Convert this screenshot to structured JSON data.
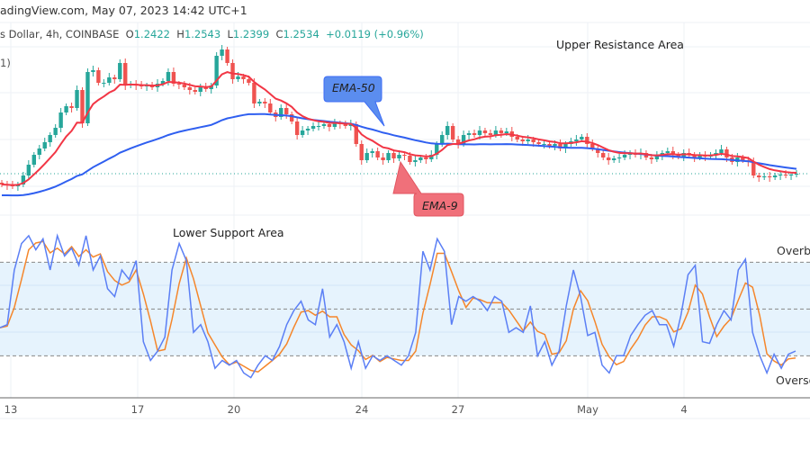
{
  "header": {
    "watermark": "adingView.com, May 07, 2023 14:42 UTC+1",
    "symbol": "s Dollar, 4h, COINBASE",
    "o_label": "O",
    "o": "1.2422",
    "h_label": "H",
    "h": "1.2543",
    "l_label": "L",
    "l": "1.2399",
    "c_label": "C",
    "c": "1.2534",
    "change": "+0.0119 (+0.96%)",
    "indicator_fragment": "1)"
  },
  "colors": {
    "up": "#26a69a",
    "down": "#ef5350",
    "ema9": "#f23645",
    "ema50": "#2f5ff0",
    "k_line": "#5b7ff5",
    "d_line": "#f5862b",
    "band": "#e6f3fd"
  },
  "annotations": {
    "upper": "Upper Resistance Area",
    "lower": "Lower Support Area",
    "ema50": "EMA-50",
    "ema9": "EMA-9",
    "overbought": "Overbo",
    "oversold": "Overso"
  },
  "chart_data": [
    {
      "type": "candlestick",
      "interval": "4h",
      "x_ticks": [
        "13",
        "17",
        "20",
        "24",
        "27",
        "May",
        "4"
      ],
      "close": [
        1.2522,
        1.2521,
        1.252,
        1.2522,
        1.2532,
        1.2544,
        1.2555,
        1.2562,
        1.2569,
        1.2577,
        1.2585,
        1.2602,
        1.2609,
        1.2607,
        1.2627,
        1.259,
        1.2647,
        1.2649,
        1.2635,
        1.2635,
        1.2641,
        1.2639,
        1.2657,
        1.2632,
        1.2634,
        1.2632,
        1.2631,
        1.2632,
        1.263,
        1.2634,
        1.2637,
        1.2647,
        1.2634,
        1.2633,
        1.263,
        1.2627,
        1.2625,
        1.263,
        1.2628,
        1.2632,
        1.2665,
        1.2672,
        1.2657,
        1.2639,
        1.2642,
        1.2639,
        1.2635,
        1.2612,
        1.2614,
        1.2612,
        1.2602,
        1.2597,
        1.2607,
        1.26,
        1.2592,
        1.2577,
        1.2582,
        1.2584,
        1.2587,
        1.2587,
        1.2589,
        1.2586,
        1.259,
        1.2589,
        1.2587,
        1.2589,
        1.2567,
        1.2549,
        1.2557,
        1.2559,
        1.2552,
        1.2549,
        1.2557,
        1.2551,
        1.2555,
        1.2554,
        1.2547,
        1.2549,
        1.2552,
        1.255,
        1.2555,
        1.2567,
        1.2577,
        1.2587,
        1.2572,
        1.2567,
        1.2577,
        1.2579,
        1.2577,
        1.2582,
        1.2579,
        1.2577,
        1.2582,
        1.2579,
        1.2581,
        1.2575,
        1.2572,
        1.257,
        1.2572,
        1.2569,
        1.2567,
        1.2567,
        1.2565,
        1.2567,
        1.2562,
        1.2567,
        1.257,
        1.2572,
        1.2575,
        1.2567,
        1.2562,
        1.2557,
        1.2552,
        1.2549,
        1.2551,
        1.2552,
        1.2555,
        1.2557,
        1.2555,
        1.2557,
        1.2552,
        1.255,
        1.2554,
        1.2557,
        1.2559,
        1.2555,
        1.2553,
        1.2557,
        1.2555,
        1.2552,
        1.2554,
        1.2553,
        1.2555,
        1.2557,
        1.2561,
        1.2552,
        1.2547,
        1.2552,
        1.2549,
        1.2547,
        1.2532,
        1.253,
        1.2531,
        1.253,
        1.2532,
        1.2533,
        1.2532,
        1.2533,
        1.2534
      ],
      "overlays": [
        "EMA-9",
        "EMA-50"
      ],
      "last_price": 1.2534
    },
    {
      "type": "line",
      "levels": [
        80,
        50,
        20
      ],
      "ylim": [
        0,
        100
      ],
      "k": [
        38,
        40,
        75,
        92,
        97,
        88,
        95,
        75,
        97,
        84,
        89,
        78,
        97,
        75,
        84,
        63,
        58,
        75,
        69,
        81,
        29,
        17,
        23,
        32,
        75,
        92,
        81,
        35,
        40,
        29,
        12,
        17,
        14,
        17,
        9,
        6,
        14,
        20,
        17,
        26,
        40,
        49,
        55,
        43,
        40,
        63,
        32,
        40,
        29,
        12,
        29,
        12,
        20,
        17,
        20,
        17,
        14,
        20,
        35,
        87,
        75,
        95,
        87,
        40,
        58,
        55,
        58,
        55,
        49,
        58,
        55,
        35,
        38,
        35,
        52,
        20,
        29,
        14,
        23,
        52,
        75,
        58,
        33,
        35,
        14,
        9,
        20,
        20,
        33,
        40,
        46,
        49,
        40,
        40,
        26,
        46,
        72,
        78,
        29,
        28,
        40,
        49,
        43,
        75,
        82,
        35,
        20,
        9,
        21,
        12,
        21,
        23
      ]
    }
  ]
}
